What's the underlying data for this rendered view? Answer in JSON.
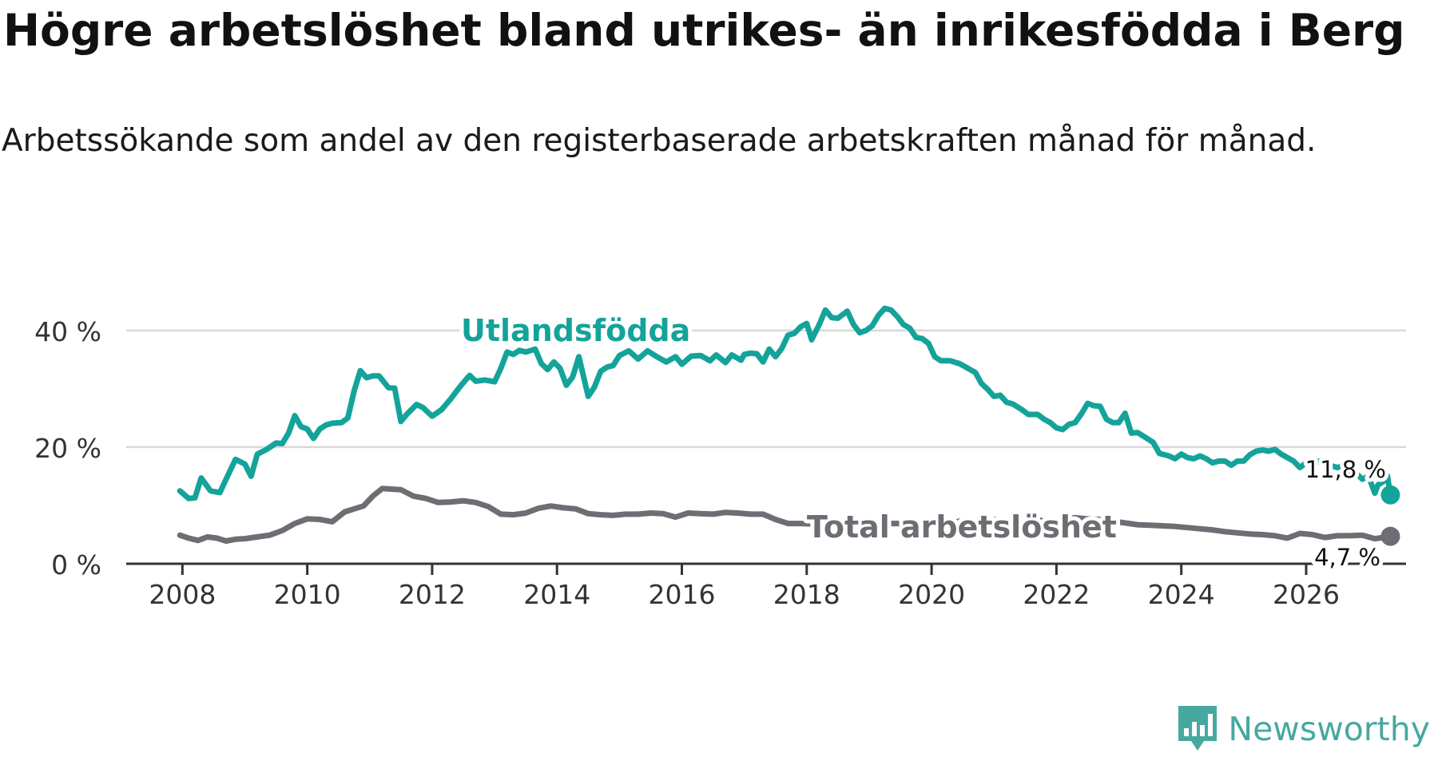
{
  "title": "Högre arbetslöshet bland utrikes- än inrikesfödda i Berg",
  "subtitle": "Arbetssökande som andel av den registerbaserade arbetskraften månad för månad.",
  "brand": {
    "name": "Newsworthy",
    "icon": "newsworthy-logo-icon",
    "color": "#47a8a0"
  },
  "chart_data": {
    "type": "line",
    "title": "Högre arbetslöshet bland utrikes- än inrikesfödda i Berg",
    "xlabel": "",
    "ylabel": "",
    "xlim": [
      2007.1,
      2027.6
    ],
    "ylim": [
      0,
      46
    ],
    "x_ticks": [
      2008,
      2010,
      2012,
      2014,
      2016,
      2018,
      2020,
      2022,
      2024,
      2026
    ],
    "y_ticks": [
      0,
      20,
      40
    ],
    "y_tick_labels": [
      "0 %",
      "20 %",
      "40 %"
    ],
    "grid": true,
    "series": [
      {
        "name": "Utlandsfödda",
        "color": "#14a39a",
        "label": "Utlandsfödda",
        "end_label": "11,8 %",
        "points": [
          [
            2007.96,
            12.5
          ],
          [
            2008.1,
            11.2
          ],
          [
            2008.2,
            11.3
          ],
          [
            2008.3,
            14.7
          ],
          [
            2008.45,
            12.5
          ],
          [
            2008.6,
            12.2
          ],
          [
            2008.7,
            14.5
          ],
          [
            2008.85,
            17.9
          ],
          [
            2009.0,
            17.1
          ],
          [
            2009.1,
            15.0
          ],
          [
            2009.2,
            18.8
          ],
          [
            2009.35,
            19.6
          ],
          [
            2009.5,
            20.7
          ],
          [
            2009.6,
            20.6
          ],
          [
            2009.7,
            22.4
          ],
          [
            2009.8,
            25.4
          ],
          [
            2009.9,
            23.5
          ],
          [
            2010.0,
            23.1
          ],
          [
            2010.1,
            21.5
          ],
          [
            2010.2,
            23.1
          ],
          [
            2010.3,
            23.8
          ],
          [
            2010.4,
            24.1
          ],
          [
            2010.55,
            24.2
          ],
          [
            2010.65,
            25.0
          ],
          [
            2010.75,
            29.6
          ],
          [
            2010.85,
            33.1
          ],
          [
            2010.95,
            31.9
          ],
          [
            2011.05,
            32.2
          ],
          [
            2011.15,
            32.2
          ],
          [
            2011.3,
            30.2
          ],
          [
            2011.4,
            30.1
          ],
          [
            2011.5,
            24.4
          ],
          [
            2011.6,
            25.7
          ],
          [
            2011.75,
            27.3
          ],
          [
            2011.85,
            26.8
          ],
          [
            2012.0,
            25.3
          ],
          [
            2012.15,
            26.4
          ],
          [
            2012.3,
            28.3
          ],
          [
            2012.45,
            30.4
          ],
          [
            2012.6,
            32.3
          ],
          [
            2012.7,
            31.3
          ],
          [
            2012.85,
            31.5
          ],
          [
            2013.0,
            31.2
          ],
          [
            2013.1,
            33.5
          ],
          [
            2013.2,
            36.3
          ],
          [
            2013.3,
            35.9
          ],
          [
            2013.4,
            36.6
          ],
          [
            2013.5,
            36.3
          ],
          [
            2013.65,
            36.8
          ],
          [
            2013.75,
            34.3
          ],
          [
            2013.85,
            33.3
          ],
          [
            2013.95,
            34.6
          ],
          [
            2014.05,
            33.5
          ],
          [
            2014.15,
            30.6
          ],
          [
            2014.25,
            32.0
          ],
          [
            2014.35,
            35.5
          ],
          [
            2014.5,
            28.7
          ],
          [
            2014.6,
            30.3
          ],
          [
            2014.7,
            33.0
          ],
          [
            2014.8,
            33.7
          ],
          [
            2014.9,
            34.0
          ],
          [
            2015.0,
            35.7
          ],
          [
            2015.15,
            36.5
          ],
          [
            2015.3,
            35.1
          ],
          [
            2015.45,
            36.5
          ],
          [
            2015.6,
            35.5
          ],
          [
            2015.75,
            34.6
          ],
          [
            2015.9,
            35.5
          ],
          [
            2016.0,
            34.2
          ],
          [
            2016.15,
            35.6
          ],
          [
            2016.3,
            35.7
          ],
          [
            2016.45,
            34.8
          ],
          [
            2016.55,
            35.8
          ],
          [
            2016.7,
            34.5
          ],
          [
            2016.8,
            35.8
          ],
          [
            2016.95,
            34.9
          ],
          [
            2017.0,
            35.9
          ],
          [
            2017.1,
            36.1
          ],
          [
            2017.2,
            36.0
          ],
          [
            2017.3,
            34.6
          ],
          [
            2017.4,
            36.8
          ],
          [
            2017.5,
            35.5
          ],
          [
            2017.6,
            36.9
          ],
          [
            2017.7,
            39.2
          ],
          [
            2017.8,
            39.5
          ],
          [
            2017.9,
            40.6
          ],
          [
            2018.0,
            41.2
          ],
          [
            2018.08,
            38.4
          ],
          [
            2018.2,
            41.0
          ],
          [
            2018.3,
            43.5
          ],
          [
            2018.4,
            42.2
          ],
          [
            2018.5,
            42.1
          ],
          [
            2018.65,
            43.3
          ],
          [
            2018.75,
            41.0
          ],
          [
            2018.85,
            39.6
          ],
          [
            2018.95,
            40.0
          ],
          [
            2019.05,
            40.8
          ],
          [
            2019.15,
            42.6
          ],
          [
            2019.25,
            43.8
          ],
          [
            2019.35,
            43.5
          ],
          [
            2019.45,
            42.4
          ],
          [
            2019.55,
            41.0
          ],
          [
            2019.65,
            40.4
          ],
          [
            2019.75,
            38.8
          ],
          [
            2019.85,
            38.6
          ],
          [
            2019.95,
            37.8
          ],
          [
            2020.05,
            35.5
          ],
          [
            2020.15,
            34.8
          ],
          [
            2020.3,
            34.8
          ],
          [
            2020.45,
            34.3
          ],
          [
            2020.55,
            33.7
          ],
          [
            2020.7,
            32.8
          ],
          [
            2020.8,
            30.9
          ],
          [
            2020.9,
            29.9
          ],
          [
            2021.0,
            28.7
          ],
          [
            2021.1,
            28.9
          ],
          [
            2021.2,
            27.7
          ],
          [
            2021.3,
            27.4
          ],
          [
            2021.45,
            26.4
          ],
          [
            2021.55,
            25.6
          ],
          [
            2021.7,
            25.6
          ],
          [
            2021.8,
            24.8
          ],
          [
            2021.9,
            24.2
          ],
          [
            2022.0,
            23.3
          ],
          [
            2022.1,
            23.0
          ],
          [
            2022.2,
            23.9
          ],
          [
            2022.3,
            24.2
          ],
          [
            2022.4,
            25.7
          ],
          [
            2022.5,
            27.5
          ],
          [
            2022.6,
            27.1
          ],
          [
            2022.7,
            27.0
          ],
          [
            2022.8,
            24.8
          ],
          [
            2022.9,
            24.2
          ],
          [
            2023.0,
            24.2
          ],
          [
            2023.1,
            25.8
          ],
          [
            2023.2,
            22.4
          ],
          [
            2023.3,
            22.5
          ],
          [
            2023.45,
            21.5
          ],
          [
            2023.55,
            20.8
          ],
          [
            2023.65,
            18.9
          ],
          [
            2023.8,
            18.5
          ],
          [
            2023.9,
            18.0
          ],
          [
            2024.0,
            18.8
          ],
          [
            2024.1,
            18.2
          ],
          [
            2024.2,
            18.0
          ],
          [
            2024.3,
            18.5
          ],
          [
            2024.4,
            18.0
          ],
          [
            2024.5,
            17.3
          ],
          [
            2024.6,
            17.6
          ],
          [
            2024.7,
            17.6
          ],
          [
            2024.8,
            16.9
          ],
          [
            2024.9,
            17.6
          ],
          [
            2025.0,
            17.6
          ],
          [
            2025.1,
            18.7
          ],
          [
            2025.2,
            19.3
          ],
          [
            2025.3,
            19.5
          ],
          [
            2025.4,
            19.3
          ],
          [
            2025.5,
            19.6
          ],
          [
            2025.6,
            18.8
          ],
          [
            2025.7,
            18.2
          ],
          [
            2025.8,
            17.6
          ],
          [
            2025.9,
            16.5
          ],
          [
            2026.0,
            17.3
          ],
          [
            2026.1,
            16.9
          ],
          [
            2026.2,
            17.6
          ],
          [
            2026.3,
            17.6
          ],
          [
            2026.4,
            16.8
          ],
          [
            2026.5,
            16.5
          ],
          [
            2026.6,
            16.8
          ],
          [
            2026.7,
            15.2
          ],
          [
            2026.8,
            15.5
          ],
          [
            2026.9,
            14.5
          ],
          [
            2027.0,
            15.0
          ],
          [
            2027.1,
            12.1
          ],
          [
            2027.15,
            13.5
          ],
          [
            2027.25,
            14.2
          ],
          [
            2027.3,
            15.1
          ],
          [
            2027.35,
            11.8
          ]
        ]
      },
      {
        "name": "Total arbetslöshet",
        "color": "#6e6d73",
        "label": "Total arbetslöshet",
        "end_label": "4,7 %",
        "points": [
          [
            2007.96,
            4.9
          ],
          [
            2008.1,
            4.4
          ],
          [
            2008.25,
            4.0
          ],
          [
            2008.4,
            4.6
          ],
          [
            2008.55,
            4.4
          ],
          [
            2008.7,
            3.9
          ],
          [
            2008.85,
            4.2
          ],
          [
            2009.0,
            4.3
          ],
          [
            2009.2,
            4.6
          ],
          [
            2009.4,
            4.9
          ],
          [
            2009.6,
            5.7
          ],
          [
            2009.8,
            6.9
          ],
          [
            2010.0,
            7.7
          ],
          [
            2010.2,
            7.6
          ],
          [
            2010.4,
            7.2
          ],
          [
            2010.6,
            8.9
          ],
          [
            2010.75,
            9.4
          ],
          [
            2010.9,
            9.9
          ],
          [
            2011.05,
            11.6
          ],
          [
            2011.2,
            12.9
          ],
          [
            2011.35,
            12.8
          ],
          [
            2011.5,
            12.7
          ],
          [
            2011.7,
            11.6
          ],
          [
            2011.9,
            11.2
          ],
          [
            2012.1,
            10.5
          ],
          [
            2012.3,
            10.6
          ],
          [
            2012.5,
            10.8
          ],
          [
            2012.7,
            10.5
          ],
          [
            2012.9,
            9.8
          ],
          [
            2013.1,
            8.5
          ],
          [
            2013.3,
            8.4
          ],
          [
            2013.5,
            8.7
          ],
          [
            2013.7,
            9.5
          ],
          [
            2013.9,
            9.9
          ],
          [
            2014.1,
            9.6
          ],
          [
            2014.3,
            9.4
          ],
          [
            2014.5,
            8.6
          ],
          [
            2014.7,
            8.4
          ],
          [
            2014.9,
            8.3
          ],
          [
            2015.1,
            8.5
          ],
          [
            2015.3,
            8.5
          ],
          [
            2015.5,
            8.7
          ],
          [
            2015.7,
            8.6
          ],
          [
            2015.9,
            8.0
          ],
          [
            2016.1,
            8.7
          ],
          [
            2016.3,
            8.6
          ],
          [
            2016.5,
            8.5
          ],
          [
            2016.7,
            8.8
          ],
          [
            2016.9,
            8.7
          ],
          [
            2017.1,
            8.5
          ],
          [
            2017.3,
            8.5
          ],
          [
            2017.5,
            7.6
          ],
          [
            2017.7,
            6.9
          ],
          [
            2017.9,
            6.9
          ],
          [
            2018.1,
            6.8
          ],
          [
            2018.3,
            7.2
          ],
          [
            2018.5,
            7.4
          ],
          [
            2018.7,
            7.3
          ],
          [
            2018.9,
            7.5
          ],
          [
            2019.1,
            7.2
          ],
          [
            2019.3,
            6.9
          ],
          [
            2019.5,
            6.9
          ],
          [
            2019.7,
            7.0
          ],
          [
            2019.9,
            7.0
          ],
          [
            2020.1,
            6.5
          ],
          [
            2020.3,
            7.0
          ],
          [
            2020.5,
            7.4
          ],
          [
            2020.7,
            7.2
          ],
          [
            2020.9,
            7.5
          ],
          [
            2021.1,
            7.6
          ],
          [
            2021.3,
            6.9
          ],
          [
            2021.5,
            7.2
          ],
          [
            2021.7,
            7.5
          ],
          [
            2021.9,
            7.2
          ],
          [
            2022.1,
            7.6
          ],
          [
            2022.3,
            7.9
          ],
          [
            2022.5,
            7.7
          ],
          [
            2022.7,
            7.6
          ],
          [
            2022.9,
            7.3
          ],
          [
            2023.1,
            7.0
          ],
          [
            2023.3,
            6.7
          ],
          [
            2023.5,
            6.6
          ],
          [
            2023.7,
            6.5
          ],
          [
            2023.9,
            6.4
          ],
          [
            2024.1,
            6.2
          ],
          [
            2024.3,
            6.0
          ],
          [
            2024.5,
            5.8
          ],
          [
            2024.7,
            5.5
          ],
          [
            2024.9,
            5.3
          ],
          [
            2025.1,
            5.1
          ],
          [
            2025.3,
            5.0
          ],
          [
            2025.5,
            4.8
          ],
          [
            2025.7,
            4.4
          ],
          [
            2025.9,
            5.2
          ],
          [
            2026.1,
            5.0
          ],
          [
            2026.3,
            4.5
          ],
          [
            2026.5,
            4.8
          ],
          [
            2026.7,
            4.8
          ],
          [
            2026.9,
            4.9
          ],
          [
            2027.1,
            4.3
          ],
          [
            2027.3,
            4.6
          ],
          [
            2027.35,
            4.7
          ]
        ]
      }
    ]
  }
}
